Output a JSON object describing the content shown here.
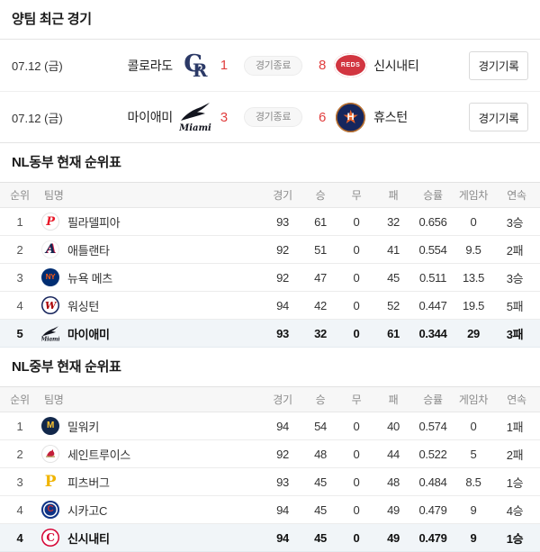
{
  "colors": {
    "score_red": "#e13e3e",
    "highlight_row_bg": "#f1f5f8",
    "header_bg": "#f7f7f7"
  },
  "recent_games": {
    "title": "양팀 최근 경기",
    "games": [
      {
        "date": "07.12 (금)",
        "status": "경기종료",
        "record_button": "경기기록",
        "left": {
          "name": "콜로라도",
          "score": "1",
          "logo": "rockies"
        },
        "right": {
          "name": "신시내티",
          "score": "8",
          "logo": "reds-game"
        }
      },
      {
        "date": "07.12 (금)",
        "status": "경기종료",
        "record_button": "경기기록",
        "left": {
          "name": "마이애미",
          "score": "3",
          "logo": "marlins-game"
        },
        "right": {
          "name": "휴스턴",
          "score": "6",
          "logo": "astros"
        }
      }
    ]
  },
  "table_columns": [
    "순위",
    "팀명",
    "경기",
    "승",
    "무",
    "패",
    "승률",
    "게임차",
    "연속"
  ],
  "standings": [
    {
      "title": "NL동부 현재 순위표",
      "rows": [
        {
          "rank": "1",
          "logo": "phillies",
          "team": "필라델피아",
          "games": "93",
          "wins": "61",
          "draws": "0",
          "losses": "32",
          "pct": "0.656",
          "gb": "0",
          "streak": "3승",
          "highlight": false
        },
        {
          "rank": "2",
          "logo": "braves",
          "team": "애틀랜타",
          "games": "92",
          "wins": "51",
          "draws": "0",
          "losses": "41",
          "pct": "0.554",
          "gb": "9.5",
          "streak": "2패",
          "highlight": false
        },
        {
          "rank": "3",
          "logo": "mets",
          "team": "뉴욕 메츠",
          "games": "92",
          "wins": "47",
          "draws": "0",
          "losses": "45",
          "pct": "0.511",
          "gb": "13.5",
          "streak": "3승",
          "highlight": false
        },
        {
          "rank": "4",
          "logo": "nationals",
          "team": "워싱턴",
          "games": "94",
          "wins": "42",
          "draws": "0",
          "losses": "52",
          "pct": "0.447",
          "gb": "19.5",
          "streak": "5패",
          "highlight": false
        },
        {
          "rank": "5",
          "logo": "marlins",
          "team": "마이애미",
          "games": "93",
          "wins": "32",
          "draws": "0",
          "losses": "61",
          "pct": "0.344",
          "gb": "29",
          "streak": "3패",
          "highlight": true
        }
      ]
    },
    {
      "title": "NL중부 현재 순위표",
      "rows": [
        {
          "rank": "1",
          "logo": "brewers",
          "team": "밀워키",
          "games": "94",
          "wins": "54",
          "draws": "0",
          "losses": "40",
          "pct": "0.574",
          "gb": "0",
          "streak": "1패",
          "highlight": false
        },
        {
          "rank": "2",
          "logo": "cardinals",
          "team": "세인트루이스",
          "games": "92",
          "wins": "48",
          "draws": "0",
          "losses": "44",
          "pct": "0.522",
          "gb": "5",
          "streak": "2패",
          "highlight": false
        },
        {
          "rank": "3",
          "logo": "pirates",
          "team": "피츠버그",
          "games": "93",
          "wins": "45",
          "draws": "0",
          "losses": "48",
          "pct": "0.484",
          "gb": "8.5",
          "streak": "1승",
          "highlight": false
        },
        {
          "rank": "4",
          "logo": "cubs",
          "team": "시카고C",
          "games": "94",
          "wins": "45",
          "draws": "0",
          "losses": "49",
          "pct": "0.479",
          "gb": "9",
          "streak": "4승",
          "highlight": false
        },
        {
          "rank": "4",
          "logo": "reds",
          "team": "신시내티",
          "games": "94",
          "wins": "45",
          "draws": "0",
          "losses": "49",
          "pct": "0.479",
          "gb": "9",
          "streak": "1승",
          "highlight": true
        }
      ]
    }
  ]
}
